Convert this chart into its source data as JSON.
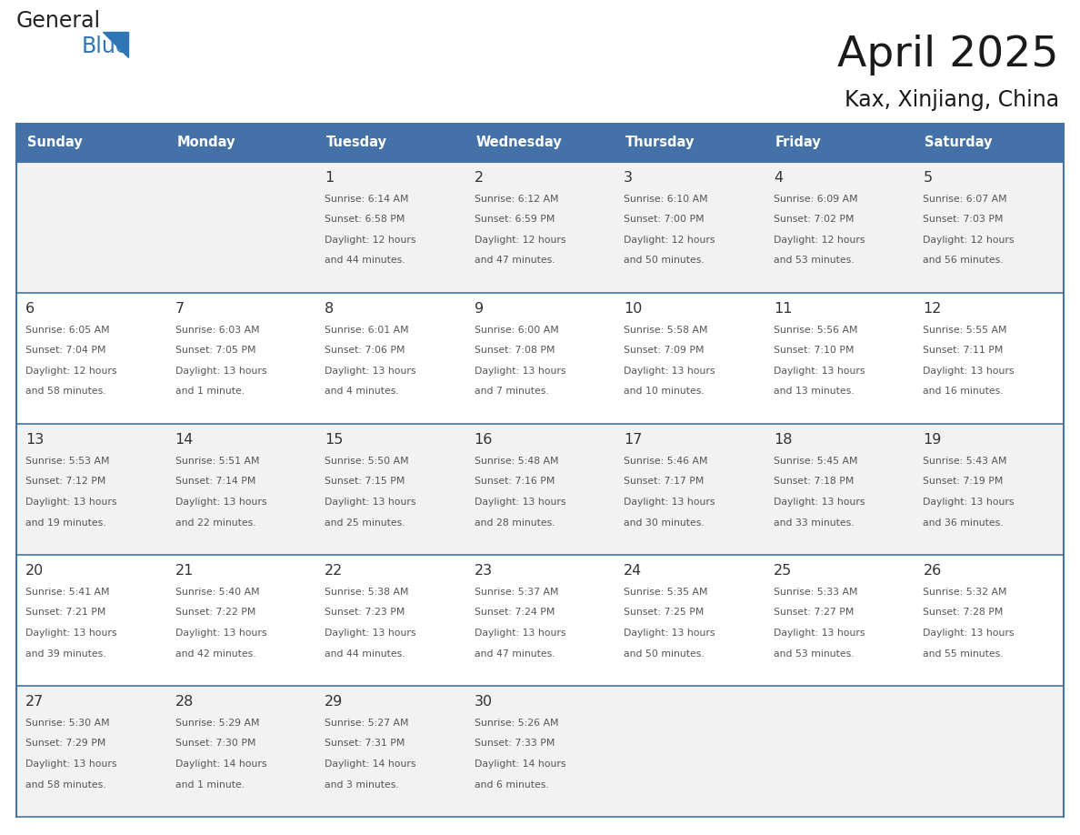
{
  "title": "April 2025",
  "subtitle": "Kax, Xinjiang, China",
  "header_bg_color": "#4472A8",
  "header_text_color": "#FFFFFF",
  "days_of_week": [
    "Sunday",
    "Monday",
    "Tuesday",
    "Wednesday",
    "Thursday",
    "Friday",
    "Saturday"
  ],
  "row_bg_even": "#F2F2F2",
  "row_bg_odd": "#FFFFFF",
  "border_color": "#4472A8",
  "day_number_color": "#333333",
  "info_text_color": "#555555",
  "logo_text_color": "#222222",
  "logo_blue_color": "#2E75B6",
  "calendar": [
    [
      {
        "day": "",
        "info": ""
      },
      {
        "day": "",
        "info": ""
      },
      {
        "day": "1",
        "info": "Sunrise: 6:14 AM\nSunset: 6:58 PM\nDaylight: 12 hours\nand 44 minutes."
      },
      {
        "day": "2",
        "info": "Sunrise: 6:12 AM\nSunset: 6:59 PM\nDaylight: 12 hours\nand 47 minutes."
      },
      {
        "day": "3",
        "info": "Sunrise: 6:10 AM\nSunset: 7:00 PM\nDaylight: 12 hours\nand 50 minutes."
      },
      {
        "day": "4",
        "info": "Sunrise: 6:09 AM\nSunset: 7:02 PM\nDaylight: 12 hours\nand 53 minutes."
      },
      {
        "day": "5",
        "info": "Sunrise: 6:07 AM\nSunset: 7:03 PM\nDaylight: 12 hours\nand 56 minutes."
      }
    ],
    [
      {
        "day": "6",
        "info": "Sunrise: 6:05 AM\nSunset: 7:04 PM\nDaylight: 12 hours\nand 58 minutes."
      },
      {
        "day": "7",
        "info": "Sunrise: 6:03 AM\nSunset: 7:05 PM\nDaylight: 13 hours\nand 1 minute."
      },
      {
        "day": "8",
        "info": "Sunrise: 6:01 AM\nSunset: 7:06 PM\nDaylight: 13 hours\nand 4 minutes."
      },
      {
        "day": "9",
        "info": "Sunrise: 6:00 AM\nSunset: 7:08 PM\nDaylight: 13 hours\nand 7 minutes."
      },
      {
        "day": "10",
        "info": "Sunrise: 5:58 AM\nSunset: 7:09 PM\nDaylight: 13 hours\nand 10 minutes."
      },
      {
        "day": "11",
        "info": "Sunrise: 5:56 AM\nSunset: 7:10 PM\nDaylight: 13 hours\nand 13 minutes."
      },
      {
        "day": "12",
        "info": "Sunrise: 5:55 AM\nSunset: 7:11 PM\nDaylight: 13 hours\nand 16 minutes."
      }
    ],
    [
      {
        "day": "13",
        "info": "Sunrise: 5:53 AM\nSunset: 7:12 PM\nDaylight: 13 hours\nand 19 minutes."
      },
      {
        "day": "14",
        "info": "Sunrise: 5:51 AM\nSunset: 7:14 PM\nDaylight: 13 hours\nand 22 minutes."
      },
      {
        "day": "15",
        "info": "Sunrise: 5:50 AM\nSunset: 7:15 PM\nDaylight: 13 hours\nand 25 minutes."
      },
      {
        "day": "16",
        "info": "Sunrise: 5:48 AM\nSunset: 7:16 PM\nDaylight: 13 hours\nand 28 minutes."
      },
      {
        "day": "17",
        "info": "Sunrise: 5:46 AM\nSunset: 7:17 PM\nDaylight: 13 hours\nand 30 minutes."
      },
      {
        "day": "18",
        "info": "Sunrise: 5:45 AM\nSunset: 7:18 PM\nDaylight: 13 hours\nand 33 minutes."
      },
      {
        "day": "19",
        "info": "Sunrise: 5:43 AM\nSunset: 7:19 PM\nDaylight: 13 hours\nand 36 minutes."
      }
    ],
    [
      {
        "day": "20",
        "info": "Sunrise: 5:41 AM\nSunset: 7:21 PM\nDaylight: 13 hours\nand 39 minutes."
      },
      {
        "day": "21",
        "info": "Sunrise: 5:40 AM\nSunset: 7:22 PM\nDaylight: 13 hours\nand 42 minutes."
      },
      {
        "day": "22",
        "info": "Sunrise: 5:38 AM\nSunset: 7:23 PM\nDaylight: 13 hours\nand 44 minutes."
      },
      {
        "day": "23",
        "info": "Sunrise: 5:37 AM\nSunset: 7:24 PM\nDaylight: 13 hours\nand 47 minutes."
      },
      {
        "day": "24",
        "info": "Sunrise: 5:35 AM\nSunset: 7:25 PM\nDaylight: 13 hours\nand 50 minutes."
      },
      {
        "day": "25",
        "info": "Sunrise: 5:33 AM\nSunset: 7:27 PM\nDaylight: 13 hours\nand 53 minutes."
      },
      {
        "day": "26",
        "info": "Sunrise: 5:32 AM\nSunset: 7:28 PM\nDaylight: 13 hours\nand 55 minutes."
      }
    ],
    [
      {
        "day": "27",
        "info": "Sunrise: 5:30 AM\nSunset: 7:29 PM\nDaylight: 13 hours\nand 58 minutes."
      },
      {
        "day": "28",
        "info": "Sunrise: 5:29 AM\nSunset: 7:30 PM\nDaylight: 14 hours\nand 1 minute."
      },
      {
        "day": "29",
        "info": "Sunrise: 5:27 AM\nSunset: 7:31 PM\nDaylight: 14 hours\nand 3 minutes."
      },
      {
        "day": "30",
        "info": "Sunrise: 5:26 AM\nSunset: 7:33 PM\nDaylight: 14 hours\nand 6 minutes."
      },
      {
        "day": "",
        "info": ""
      },
      {
        "day": "",
        "info": ""
      },
      {
        "day": "",
        "info": ""
      }
    ]
  ],
  "fig_width": 11.88,
  "fig_height": 9.18,
  "dpi": 100
}
